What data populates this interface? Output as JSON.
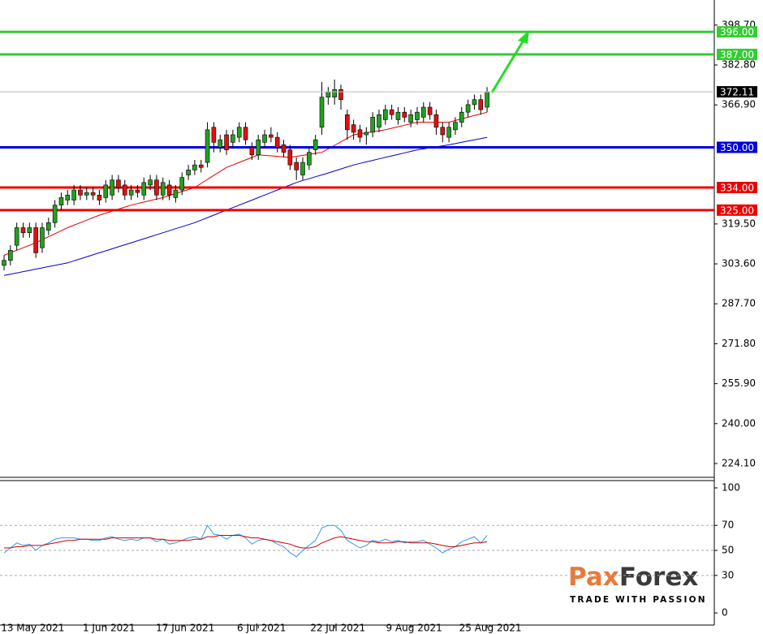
{
  "chart_data": [
    {
      "type": "candlestick",
      "categories": [
        null,
        null,
        null,
        null,
        "13 May 2021",
        null,
        null,
        null,
        null,
        null,
        null,
        null,
        null,
        null,
        null,
        null,
        "1 Jun 2021",
        null,
        null,
        null,
        null,
        null,
        null,
        null,
        null,
        null,
        null,
        null,
        "17 Jun 2021",
        null,
        null,
        null,
        null,
        null,
        null,
        null,
        null,
        null,
        null,
        null,
        "6 Jul 2021",
        null,
        null,
        null,
        null,
        null,
        null,
        null,
        null,
        null,
        null,
        null,
        "22 Jul 2021",
        null,
        null,
        null,
        null,
        null,
        null,
        null,
        null,
        null,
        null,
        null,
        "9 Aug 2021",
        null,
        null,
        null,
        null,
        null,
        null,
        null,
        null,
        null,
        null,
        null,
        "25 Aug 2021"
      ],
      "open": [
        303,
        305,
        311,
        318,
        316,
        318,
        310,
        317,
        320,
        327,
        329,
        329,
        333,
        331,
        332,
        331,
        330,
        331,
        337,
        335,
        331,
        333,
        331,
        335,
        337,
        331,
        335,
        330,
        333,
        339,
        341,
        343,
        344,
        358,
        350,
        355,
        352,
        354,
        358,
        350,
        347,
        352,
        355,
        354,
        351,
        349,
        344,
        339,
        343,
        349,
        358,
        370,
        370,
        373,
        363,
        359,
        357,
        355,
        356,
        358,
        361,
        365,
        361,
        364,
        360,
        361,
        362,
        366,
        363,
        358,
        354,
        357,
        360,
        364,
        367,
        369,
        366
      ],
      "high": [
        307,
        311,
        320,
        320,
        320,
        320,
        320,
        322,
        329,
        332,
        333,
        335,
        335,
        334,
        334,
        333,
        337,
        339,
        339,
        337,
        335,
        335,
        338,
        339,
        339,
        338,
        337,
        335,
        340,
        343,
        345,
        345,
        360,
        360,
        355,
        357,
        357,
        360,
        360,
        352,
        355,
        357,
        358,
        356,
        353,
        351,
        346,
        346,
        350,
        355,
        376,
        374,
        377,
        375,
        365,
        361,
        359,
        358,
        364,
        365,
        367,
        367,
        366,
        366,
        365,
        366,
        368,
        368,
        365,
        360,
        360,
        362,
        366,
        369,
        371,
        371,
        374
      ],
      "low": [
        301,
        303,
        309,
        314,
        314,
        306,
        308,
        315,
        318,
        325,
        327,
        327,
        329,
        329,
        329,
        327,
        328,
        329,
        332,
        329,
        329,
        330,
        329,
        333,
        329,
        329,
        329,
        328,
        331,
        337,
        339,
        340,
        342,
        348,
        348,
        347,
        350,
        352,
        351,
        345,
        345,
        350,
        352,
        348,
        346,
        341,
        337,
        337,
        341,
        347,
        355,
        367,
        367,
        365,
        353,
        353,
        352,
        351,
        354,
        356,
        359,
        361,
        359,
        360,
        358,
        359,
        360,
        361,
        355,
        352,
        352,
        355,
        358,
        362,
        365,
        363,
        364
      ],
      "close": [
        305,
        309,
        318,
        316,
        318,
        308,
        318,
        320,
        327,
        330,
        331,
        333,
        331,
        332,
        331,
        329,
        335,
        337,
        334,
        331,
        333,
        332,
        336,
        337,
        331,
        336,
        331,
        333,
        338,
        341,
        343,
        342,
        357,
        352,
        353,
        349,
        355,
        358,
        353,
        347,
        353,
        355,
        354,
        350,
        348,
        343,
        341,
        344,
        348,
        353,
        370,
        372,
        373,
        369,
        357,
        356,
        354,
        356,
        362,
        363,
        365,
        363,
        364,
        362,
        363,
        364,
        366,
        363,
        358,
        355,
        358,
        360,
        364,
        367,
        369,
        365,
        372.11
      ],
      "up_color": "#22a022",
      "down_color": "#e01010",
      "series": [
        {
          "color": "#e00000",
          "values": [
            307,
            308,
            309,
            310,
            311,
            312,
            313.2,
            314.4,
            315.6,
            316.8,
            318,
            319,
            320,
            321,
            322,
            323,
            323.8,
            324.6,
            325.4,
            326.2,
            327,
            327.6,
            328.2,
            328.8,
            329.4,
            330,
            330.8,
            331.6,
            332.4,
            333.2,
            334,
            335.6,
            337.2,
            338.8,
            340.4,
            342,
            343,
            344,
            345,
            346,
            347,
            346.8,
            346.6,
            346.4,
            346.2,
            346,
            346.4,
            346.8,
            347.2,
            347.6,
            348,
            349.4,
            350.8,
            352.2,
            353.6,
            355,
            355.4,
            355.8,
            356.2,
            356.6,
            357,
            357.6,
            358.2,
            358.8,
            359.4,
            360,
            360,
            360,
            360,
            360,
            360,
            360.7,
            361.3,
            362,
            362.7,
            363.3,
            364
          ]
        },
        {
          "color": "#0000cc",
          "values": [
            299,
            299.5,
            300,
            300.5,
            301,
            301.5,
            302,
            302.5,
            303,
            303.5,
            304,
            304.8,
            305.6,
            306.4,
            307.2,
            308,
            308.8,
            309.6,
            310.4,
            311.2,
            312,
            312.8,
            313.6,
            314.4,
            315.2,
            316,
            316.8,
            317.6,
            318.4,
            319.2,
            320,
            321,
            322,
            323,
            324,
            325,
            326,
            327,
            328,
            329,
            330,
            331,
            332,
            333,
            334,
            335,
            336,
            336.8,
            337.5,
            338.3,
            339,
            339.8,
            340.6,
            341.4,
            342.2,
            343,
            343.6,
            344.2,
            344.8,
            345.4,
            346,
            346.6,
            347.2,
            347.8,
            348.4,
            349,
            349.4,
            349.8,
            350.2,
            350.6,
            351,
            351.5,
            352,
            352.5,
            353,
            353.5,
            354
          ]
        }
      ],
      "levels": [
        {
          "value": 396,
          "label": "396.00",
          "color": "#33cc33"
        },
        {
          "value": 387,
          "label": "387.00",
          "color": "#33cc33"
        },
        {
          "value": 350,
          "label": "350.00",
          "color": "#0000dd"
        },
        {
          "value": 334,
          "label": "334.00",
          "color": "#ee0000"
        },
        {
          "value": 325,
          "label": "325.00",
          "color": "#ee0000"
        }
      ],
      "last_price": 372.11,
      "ylim": [
        218.6,
        407.7
      ],
      "yticks": [
        {
          "value": 224.1,
          "label": "224.10"
        },
        {
          "value": 240,
          "label": "240.00"
        },
        {
          "value": 255.9,
          "label": "255.90"
        },
        {
          "value": 271.8,
          "label": "271.80"
        },
        {
          "value": 287.7,
          "label": "287.70"
        },
        {
          "value": 303.6,
          "label": "303.60"
        },
        {
          "value": 319.5,
          "label": "319.50"
        },
        {
          "value": 366.9,
          "label": "366.90"
        },
        {
          "value": 382.8,
          "label": "382.80"
        },
        {
          "value": 398.7,
          "label": "398.70"
        }
      ]
    },
    {
      "type": "line",
      "series": [
        {
          "color": "#3399ee",
          "values": [
            48,
            52,
            56,
            54,
            55,
            50,
            54,
            56,
            59,
            60,
            60,
            60,
            59,
            59,
            58,
            58,
            60,
            61,
            59,
            58,
            59,
            58,
            60,
            60,
            57,
            59,
            55,
            56,
            58,
            60,
            61,
            59,
            70,
            63,
            62,
            59,
            62,
            63,
            60,
            55,
            58,
            59,
            58,
            55,
            53,
            48,
            45,
            50,
            54,
            58,
            68,
            70,
            70,
            66,
            58,
            55,
            52,
            54,
            58,
            57,
            59,
            57,
            58,
            56,
            57,
            57,
            58,
            55,
            52,
            48,
            51,
            53,
            57,
            59,
            61,
            56,
            62
          ]
        },
        {
          "color": "#cc0000",
          "values": [
            52,
            52,
            53,
            53,
            54,
            54,
            54,
            55,
            56,
            57,
            58,
            58,
            59,
            59,
            59,
            59,
            59,
            60,
            60,
            60,
            60,
            60,
            60,
            60,
            59,
            59,
            58,
            58,
            58,
            58,
            59,
            59,
            61,
            61,
            62,
            62,
            62,
            62,
            61,
            60,
            60,
            59,
            58,
            57,
            56,
            55,
            53,
            52,
            52,
            53,
            56,
            58,
            60,
            61,
            60,
            59,
            58,
            57,
            57,
            56,
            56,
            56,
            57,
            57,
            56,
            56,
            56,
            56,
            55,
            54,
            53,
            53,
            54,
            55,
            56,
            56,
            57
          ]
        }
      ],
      "ylim": [
        -9.7,
        105.2
      ],
      "yticks": [
        0,
        30,
        50,
        70,
        100
      ],
      "grid": true
    }
  ],
  "watermark": {
    "brand_left": "Pax",
    "brand_right": "Forex",
    "tagline": "TRADE WITH PASSION"
  }
}
